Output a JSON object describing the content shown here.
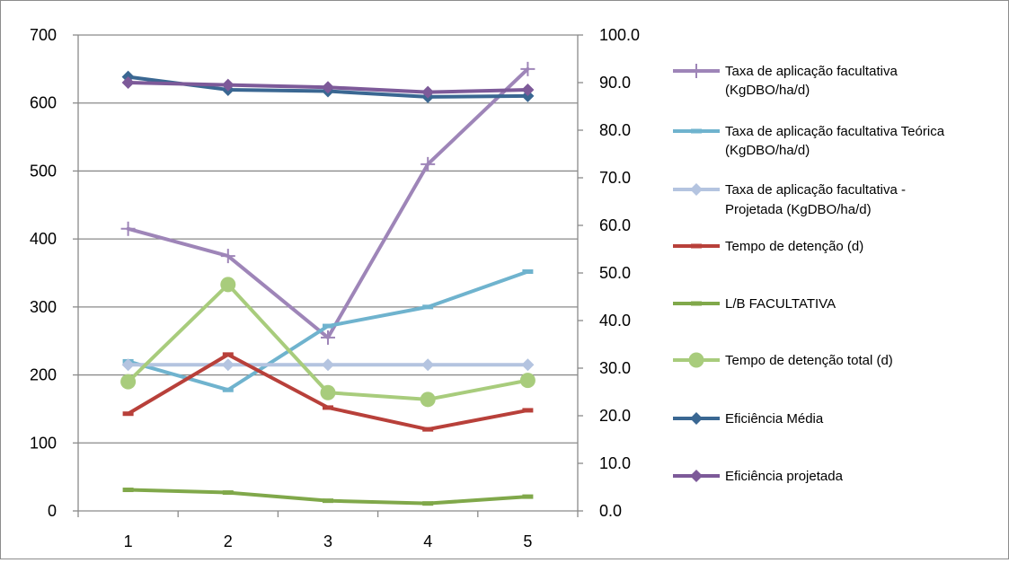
{
  "chart_data": {
    "type": "line",
    "title": "",
    "xlabel": "",
    "ylabel": "",
    "categories": [
      "1",
      "2",
      "3",
      "4",
      "5"
    ],
    "y_left": {
      "range": [
        0,
        700
      ],
      "ticks": [
        "0",
        "100",
        "200",
        "300",
        "400",
        "500",
        "600",
        "700"
      ]
    },
    "y_right": {
      "range": [
        0,
        100
      ],
      "ticks": [
        "0.0",
        "10.0",
        "20.0",
        "30.0",
        "40.0",
        "50.0",
        "60.0",
        "70.0",
        "80.0",
        "90.0",
        "100.0"
      ]
    },
    "grid": "horizontal",
    "legend_position": "right",
    "series": [
      {
        "name": "Taxa de aplicação facultativa (KgDBO/ha/d)",
        "name_lines": [
          "Taxa de aplicação facultativa",
          "(KgDBO/ha/d)"
        ],
        "axis": "left",
        "color": "#9e85b8",
        "marker": "plus",
        "values": [
          415,
          375,
          255,
          510,
          650
        ]
      },
      {
        "name": "Taxa de aplicação facultativa Teórica (KgDBO/ha/d)",
        "name_lines": [
          "Taxa de aplicação facultativa Teórica",
          "(KgDBO/ha/d)"
        ],
        "axis": "left",
        "color": "#6fb3ce",
        "marker": "dash",
        "values": [
          220,
          178,
          272,
          300,
          352
        ]
      },
      {
        "name": "Taxa de aplicação facultativa - Projetada (KgDBO/ha/d)",
        "name_lines": [
          "Taxa de aplicação facultativa -",
          "Projetada (KgDBO/ha/d)"
        ],
        "axis": "left",
        "color": "#b4c4e0",
        "marker": "diamond",
        "values": [
          215,
          215,
          215,
          215,
          215
        ]
      },
      {
        "name": "Tempo de detenção (d)",
        "name_lines": [
          "Tempo de detenção (d)"
        ],
        "axis": "left",
        "color": "#b8403a",
        "marker": "dash",
        "values": [
          143,
          230,
          152,
          120,
          148
        ]
      },
      {
        "name": "L/B FACULTATIVA",
        "name_lines": [
          "L/B FACULTATIVA"
        ],
        "axis": "left",
        "color": "#80a84a",
        "marker": "dash",
        "values": [
          31,
          27,
          15,
          11,
          21
        ]
      },
      {
        "name": "Tempo de detenção total (d)",
        "name_lines": [
          "Tempo de detenção total (d)"
        ],
        "axis": "left",
        "color": "#a8cc7c",
        "marker": "circle",
        "values": [
          190,
          333,
          174,
          164,
          192
        ]
      },
      {
        "name": "Eficiência Média",
        "name_lines": [
          "Eficiência Média"
        ],
        "axis": "right",
        "color": "#3a6792",
        "marker": "diamond",
        "values": [
          91.2,
          88.5,
          88.2,
          87.0,
          87.2
        ]
      },
      {
        "name": "Eficiência projetada",
        "name_lines": [
          "Eficiência projetada"
        ],
        "axis": "right",
        "color": "#7d5a99",
        "marker": "diamond",
        "values": [
          90.0,
          89.5,
          89.0,
          88.0,
          88.5
        ]
      }
    ]
  }
}
